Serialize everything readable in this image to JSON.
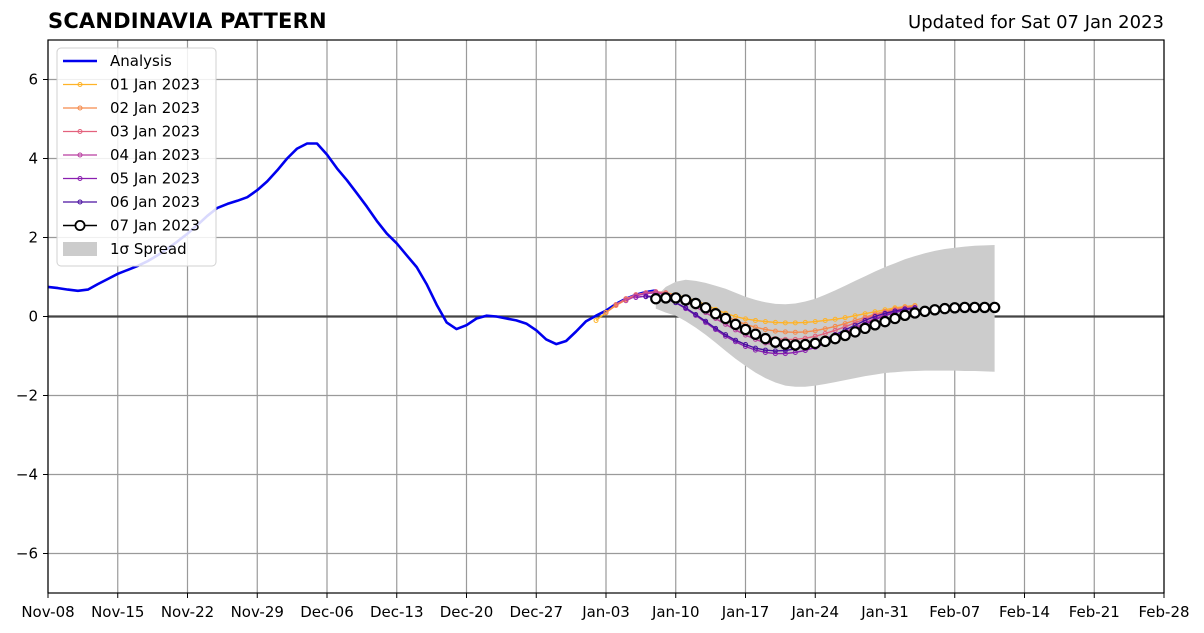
{
  "title": "SCANDINAVIA PATTERN",
  "subtitle": "Updated for Sat 07 Jan 2023",
  "chart_data": {
    "type": "line",
    "title": "SCANDINAVIA PATTERN",
    "xlabel": "",
    "ylabel": "",
    "xlim": [
      "2022-11-08",
      "2023-02-28"
    ],
    "ylim": [
      -7,
      7
    ],
    "grid": true,
    "legend_position": "top-left",
    "x_ticks": [
      "Nov-08",
      "Nov-15",
      "Nov-22",
      "Nov-29",
      "Dec-06",
      "Dec-13",
      "Dec-20",
      "Dec-27",
      "Jan-03",
      "Jan-10",
      "Jan-17",
      "Jan-24",
      "Jan-31",
      "Feb-07",
      "Feb-14",
      "Feb-21",
      "Feb-28"
    ],
    "x_tick_dates": [
      "2022-11-08",
      "2022-11-15",
      "2022-11-22",
      "2022-11-29",
      "2022-12-06",
      "2022-12-13",
      "2022-12-20",
      "2022-12-27",
      "2023-01-03",
      "2023-01-10",
      "2023-01-17",
      "2023-01-24",
      "2023-01-31",
      "2023-02-07",
      "2023-02-14",
      "2023-02-21",
      "2023-02-28"
    ],
    "y_ticks": [
      "6",
      "4",
      "2",
      "0",
      "−2",
      "−4",
      "−6"
    ],
    "y_tick_values": [
      6,
      4,
      2,
      0,
      -2,
      -4,
      -6
    ],
    "analysis": {
      "name": "Analysis",
      "color": "#0000ee",
      "points": [
        [
          "2022-11-08",
          0.75
        ],
        [
          "2022-11-09",
          0.72
        ],
        [
          "2022-11-10",
          0.68
        ],
        [
          "2022-11-11",
          0.65
        ],
        [
          "2022-11-12",
          0.68
        ],
        [
          "2022-11-13",
          0.82
        ],
        [
          "2022-11-14",
          0.95
        ],
        [
          "2022-11-15",
          1.08
        ],
        [
          "2022-11-16",
          1.18
        ],
        [
          "2022-11-17",
          1.28
        ],
        [
          "2022-11-18",
          1.4
        ],
        [
          "2022-11-19",
          1.55
        ],
        [
          "2022-11-20",
          1.72
        ],
        [
          "2022-11-21",
          1.9
        ],
        [
          "2022-11-22",
          2.1
        ],
        [
          "2022-11-23",
          2.32
        ],
        [
          "2022-11-24",
          2.55
        ],
        [
          "2022-11-25",
          2.75
        ],
        [
          "2022-11-26",
          2.85
        ],
        [
          "2022-11-27",
          2.93
        ],
        [
          "2022-11-28",
          3.02
        ],
        [
          "2022-11-29",
          3.2
        ],
        [
          "2022-11-30",
          3.42
        ],
        [
          "2022-12-01",
          3.7
        ],
        [
          "2022-12-02",
          4.0
        ],
        [
          "2022-12-03",
          4.25
        ],
        [
          "2022-12-04",
          4.38
        ],
        [
          "2022-12-05",
          4.38
        ],
        [
          "2022-12-06",
          4.1
        ],
        [
          "2022-12-07",
          3.75
        ],
        [
          "2022-12-08",
          3.45
        ],
        [
          "2022-12-09",
          3.12
        ],
        [
          "2022-12-10",
          2.78
        ],
        [
          "2022-12-11",
          2.42
        ],
        [
          "2022-12-12",
          2.1
        ],
        [
          "2022-12-13",
          1.85
        ],
        [
          "2022-12-14",
          1.55
        ],
        [
          "2022-12-15",
          1.25
        ],
        [
          "2022-12-16",
          0.82
        ],
        [
          "2022-12-17",
          0.3
        ],
        [
          "2022-12-18",
          -0.15
        ],
        [
          "2022-12-19",
          -0.32
        ],
        [
          "2022-12-20",
          -0.22
        ],
        [
          "2022-12-21",
          -0.05
        ],
        [
          "2022-12-22",
          0.02
        ],
        [
          "2022-12-23",
          0.0
        ],
        [
          "2022-12-24",
          -0.05
        ],
        [
          "2022-12-25",
          -0.1
        ],
        [
          "2022-12-26",
          -0.18
        ],
        [
          "2022-12-27",
          -0.35
        ],
        [
          "2022-12-28",
          -0.58
        ],
        [
          "2022-12-29",
          -0.7
        ],
        [
          "2022-12-30",
          -0.62
        ],
        [
          "2022-12-31",
          -0.38
        ],
        [
          "2023-01-01",
          -0.12
        ],
        [
          "2023-01-02",
          0.02
        ],
        [
          "2023-01-03",
          0.15
        ],
        [
          "2023-01-04",
          0.32
        ],
        [
          "2023-01-05",
          0.45
        ],
        [
          "2023-01-06",
          0.55
        ],
        [
          "2023-01-07",
          0.62
        ],
        [
          "2023-01-08",
          0.66
        ]
      ]
    },
    "forecasts": [
      {
        "name": "01 Jan 2023",
        "color": "#ffb327",
        "x_start": "2023-01-02",
        "values": [
          -0.1,
          0.1,
          0.3,
          0.45,
          0.55,
          0.6,
          0.62,
          0.6,
          0.55,
          0.48,
          0.4,
          0.3,
          0.18,
          0.08,
          0.0,
          -0.06,
          -0.1,
          -0.13,
          -0.15,
          -0.16,
          -0.16,
          -0.15,
          -0.13,
          -0.1,
          -0.07,
          -0.03,
          0.02,
          0.07,
          0.12,
          0.17,
          0.22,
          0.25,
          0.28
        ]
      },
      {
        "name": "02 Jan 2023",
        "color": "#f58b4c",
        "x_start": "2023-01-03",
        "values": [
          0.1,
          0.28,
          0.42,
          0.53,
          0.59,
          0.61,
          0.58,
          0.52,
          0.44,
          0.35,
          0.24,
          0.12,
          0.0,
          -0.1,
          -0.2,
          -0.27,
          -0.33,
          -0.37,
          -0.39,
          -0.4,
          -0.39,
          -0.36,
          -0.31,
          -0.25,
          -0.18,
          -0.1,
          -0.02,
          0.06,
          0.13,
          0.19,
          0.24,
          0.27
        ]
      },
      {
        "name": "03 Jan 2023",
        "color": "#e3627d",
        "x_start": "2023-01-04",
        "values": [
          0.3,
          0.45,
          0.55,
          0.6,
          0.63,
          0.6,
          0.52,
          0.42,
          0.3,
          0.17,
          0.04,
          -0.1,
          -0.23,
          -0.34,
          -0.44,
          -0.51,
          -0.56,
          -0.58,
          -0.58,
          -0.55,
          -0.5,
          -0.43,
          -0.35,
          -0.26,
          -0.16,
          -0.06,
          0.03,
          0.1,
          0.16,
          0.21,
          0.23
        ]
      },
      {
        "name": "04 Jan 2023",
        "color": "#b93fa0",
        "x_start": "2023-01-05",
        "values": [
          0.4,
          0.52,
          0.58,
          0.6,
          0.56,
          0.48,
          0.37,
          0.24,
          0.1,
          -0.05,
          -0.2,
          -0.34,
          -0.47,
          -0.58,
          -0.67,
          -0.73,
          -0.76,
          -0.76,
          -0.73,
          -0.67,
          -0.59,
          -0.5,
          -0.39,
          -0.28,
          -0.16,
          -0.05,
          0.05,
          0.12,
          0.18,
          0.22
        ]
      },
      {
        "name": "05 Jan 2023",
        "color": "#8a1fb0",
        "x_start": "2023-01-06",
        "values": [
          0.48,
          0.52,
          0.5,
          0.45,
          0.35,
          0.2,
          0.03,
          -0.15,
          -0.33,
          -0.5,
          -0.64,
          -0.76,
          -0.85,
          -0.91,
          -0.94,
          -0.94,
          -0.91,
          -0.86,
          -0.78,
          -0.68,
          -0.57,
          -0.45,
          -0.32,
          -0.2,
          -0.08,
          0.02,
          0.1,
          0.16,
          0.2
        ]
      },
      {
        "name": "06 Jan 2023",
        "color": "#4a10a0",
        "x_start": "2023-01-07",
        "values": [
          0.5,
          0.5,
          0.45,
          0.35,
          0.22,
          0.05,
          -0.12,
          -0.3,
          -0.46,
          -0.6,
          -0.71,
          -0.8,
          -0.85,
          -0.87,
          -0.86,
          -0.82,
          -0.76,
          -0.67,
          -0.57,
          -0.46,
          -0.34,
          -0.22,
          -0.1,
          0.0,
          0.08,
          0.14,
          0.19,
          0.22
        ]
      },
      {
        "name": "07 Jan 2023",
        "color": "#000000",
        "x_start": "2023-01-08",
        "values": [
          0.45,
          0.47,
          0.47,
          0.42,
          0.33,
          0.22,
          0.07,
          -0.05,
          -0.2,
          -0.33,
          -0.45,
          -0.56,
          -0.65,
          -0.7,
          -0.72,
          -0.71,
          -0.68,
          -0.63,
          -0.56,
          -0.48,
          -0.39,
          -0.3,
          -0.21,
          -0.13,
          -0.05,
          0.03,
          0.09,
          0.13,
          0.17,
          0.2,
          0.22,
          0.23,
          0.23,
          0.23,
          0.23
        ]
      }
    ],
    "spread": {
      "name": "1σ Spread",
      "color": "#cccccc",
      "x_start": "2023-01-08",
      "upper": [
        0.5,
        0.75,
        0.88,
        0.93,
        0.9,
        0.85,
        0.78,
        0.7,
        0.6,
        0.5,
        0.42,
        0.36,
        0.32,
        0.31,
        0.33,
        0.38,
        0.45,
        0.55,
        0.66,
        0.78,
        0.9,
        1.02,
        1.14,
        1.25,
        1.35,
        1.45,
        1.53,
        1.6,
        1.66,
        1.71,
        1.74,
        1.77,
        1.79,
        1.8,
        1.81
      ],
      "lower": [
        0.2,
        0.1,
        0.02,
        -0.12,
        -0.28,
        -0.46,
        -0.66,
        -0.87,
        -1.07,
        -1.25,
        -1.42,
        -1.56,
        -1.67,
        -1.75,
        -1.78,
        -1.78,
        -1.75,
        -1.71,
        -1.66,
        -1.61,
        -1.56,
        -1.51,
        -1.47,
        -1.43,
        -1.41,
        -1.39,
        -1.38,
        -1.37,
        -1.37,
        -1.37,
        -1.37,
        -1.38,
        -1.38,
        -1.39,
        -1.4
      ]
    },
    "legend": [
      "Analysis",
      "01 Jan 2023",
      "02 Jan 2023",
      "03 Jan 2023",
      "04 Jan 2023",
      "05 Jan 2023",
      "06 Jan 2023",
      "07 Jan 2023",
      "1σ Spread"
    ]
  }
}
